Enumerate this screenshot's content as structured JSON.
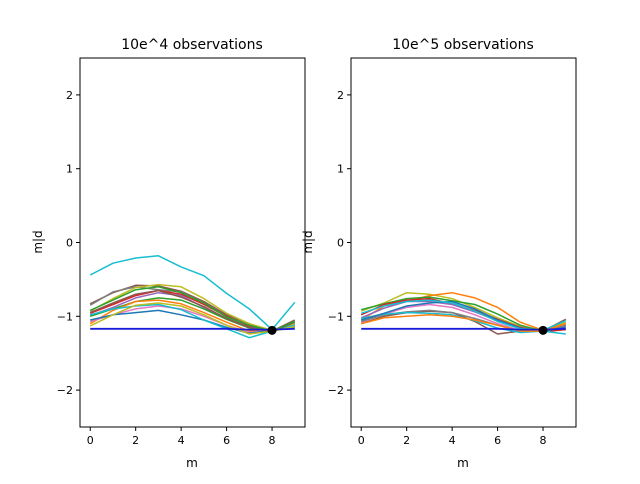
{
  "chart_data": [
    {
      "type": "line",
      "title": "10e^4 observations",
      "xlabel": "m",
      "ylabel": "m|d",
      "xlim": [
        -0.45,
        9.45
      ],
      "ylim": [
        -2.5,
        2.5
      ],
      "xticks": [
        0,
        2,
        4,
        6,
        8
      ],
      "yticks": [
        -2,
        -1,
        0,
        1,
        2
      ],
      "grid": false,
      "x": [
        0,
        1,
        2,
        3,
        4,
        5,
        6,
        7,
        8,
        9
      ],
      "true_value": {
        "x": 8,
        "y": -1.19,
        "color": "#000000"
      },
      "reference": {
        "values": [
          -1.17,
          -1.17,
          -1.17,
          -1.17,
          -1.17,
          -1.17,
          -1.17,
          -1.18,
          -1.18,
          -1.17
        ],
        "color": "#1a1adb"
      },
      "series": [
        {
          "color": "#17becf",
          "values": [
            -0.44,
            -0.28,
            -0.21,
            -0.18,
            -0.33,
            -0.45,
            -0.69,
            -0.9,
            -1.18,
            -0.81
          ]
        },
        {
          "color": "#8c564b",
          "values": [
            -0.83,
            -0.68,
            -0.58,
            -0.59,
            -0.66,
            -0.8,
            -0.98,
            -1.1,
            -1.2,
            -1.05
          ]
        },
        {
          "color": "#7f7f7f",
          "values": [
            -0.85,
            -0.67,
            -0.6,
            -0.64,
            -0.67,
            -0.82,
            -1.0,
            -1.12,
            -1.2,
            -1.09
          ]
        },
        {
          "color": "#bcbd22",
          "values": [
            -0.93,
            -0.76,
            -0.61,
            -0.57,
            -0.6,
            -0.76,
            -0.96,
            -1.1,
            -1.19,
            -1.1
          ]
        },
        {
          "color": "#d62728",
          "values": [
            -0.96,
            -0.84,
            -0.72,
            -0.65,
            -0.7,
            -0.84,
            -1.0,
            -1.13,
            -1.2,
            -1.12
          ]
        },
        {
          "color": "#9467bd",
          "values": [
            -0.99,
            -0.88,
            -0.75,
            -0.68,
            -0.72,
            -0.88,
            -1.03,
            -1.15,
            -1.19,
            -1.13
          ]
        },
        {
          "color": "#2ca02c",
          "values": [
            -1.0,
            -0.9,
            -0.8,
            -0.75,
            -0.78,
            -0.9,
            -1.04,
            -1.16,
            -1.19,
            -1.13
          ]
        },
        {
          "color": "#ff7f0e",
          "values": [
            -1.1,
            -0.92,
            -0.8,
            -0.78,
            -0.83,
            -0.95,
            -1.08,
            -1.2,
            -1.2,
            -1.14
          ]
        },
        {
          "color": "#e377c2",
          "values": [
            -1.07,
            -0.98,
            -0.9,
            -0.86,
            -0.9,
            -1.0,
            -1.12,
            -1.22,
            -1.19,
            -1.12
          ]
        },
        {
          "color": "#1f77b4",
          "values": [
            -1.05,
            -0.98,
            -0.95,
            -0.92,
            -0.98,
            -1.05,
            -1.15,
            -1.23,
            -1.19,
            -1.15
          ]
        },
        {
          "color": "#17becf",
          "values": [
            -0.98,
            -0.9,
            -0.86,
            -0.84,
            -0.91,
            -1.05,
            -1.17,
            -1.29,
            -1.2,
            -1.12
          ]
        },
        {
          "color": "#bcbd22",
          "values": [
            -1.13,
            -0.98,
            -0.85,
            -0.82,
            -0.86,
            -0.98,
            -1.12,
            -1.24,
            -1.2,
            -1.14
          ]
        },
        {
          "color": "#8c564b",
          "values": [
            -0.95,
            -0.82,
            -0.7,
            -0.65,
            -0.74,
            -0.87,
            -1.03,
            -1.15,
            -1.21,
            -1.08
          ]
        },
        {
          "color": "#2ca02c",
          "values": [
            -0.92,
            -0.78,
            -0.64,
            -0.6,
            -0.68,
            -0.82,
            -1.01,
            -1.12,
            -1.2,
            -1.07
          ]
        }
      ]
    },
    {
      "type": "line",
      "title": "10e^5 observations",
      "xlabel": "m",
      "ylabel": "m|d",
      "xlim": [
        -0.45,
        9.45
      ],
      "ylim": [
        -2.5,
        2.5
      ],
      "xticks": [
        0,
        2,
        4,
        6,
        8
      ],
      "yticks": [
        -2,
        -1,
        0,
        1,
        2
      ],
      "grid": false,
      "x": [
        0,
        1,
        2,
        3,
        4,
        5,
        6,
        7,
        8,
        9
      ],
      "true_value": {
        "x": 8,
        "y": -1.19,
        "color": "#000000"
      },
      "reference": {
        "values": [
          -1.17,
          -1.17,
          -1.17,
          -1.17,
          -1.17,
          -1.17,
          -1.17,
          -1.18,
          -1.18,
          -1.17
        ],
        "color": "#1a1adb"
      },
      "series": [
        {
          "color": "#bcbd22",
          "values": [
            -0.93,
            -0.82,
            -0.68,
            -0.7,
            -0.76,
            -0.88,
            -1.02,
            -1.14,
            -1.19,
            -1.08
          ]
        },
        {
          "color": "#ff7f0e",
          "values": [
            -1.05,
            -0.86,
            -0.8,
            -0.72,
            -0.68,
            -0.75,
            -0.88,
            -1.08,
            -1.19,
            -1.1
          ]
        },
        {
          "color": "#2ca02c",
          "values": [
            -0.91,
            -0.83,
            -0.76,
            -0.74,
            -0.79,
            -0.84,
            -0.97,
            -1.12,
            -1.2,
            -1.13
          ]
        },
        {
          "color": "#d62728",
          "values": [
            -0.98,
            -0.84,
            -0.78,
            -0.76,
            -0.83,
            -0.92,
            -1.04,
            -1.15,
            -1.21,
            -1.18
          ]
        },
        {
          "color": "#9467bd",
          "values": [
            -1.02,
            -0.89,
            -0.8,
            -0.8,
            -0.84,
            -0.94,
            -1.06,
            -1.16,
            -1.2,
            -1.13
          ]
        },
        {
          "color": "#8c564b",
          "values": [
            -1.1,
            -1.0,
            -0.95,
            -0.93,
            -0.95,
            -1.07,
            -1.24,
            -1.2,
            -1.2,
            -1.04
          ]
        },
        {
          "color": "#e377c2",
          "values": [
            -1.08,
            -0.97,
            -0.88,
            -0.84,
            -0.88,
            -0.98,
            -1.1,
            -1.19,
            -1.2,
            -1.11
          ]
        },
        {
          "color": "#7f7f7f",
          "values": [
            -1.07,
            -0.98,
            -0.94,
            -0.92,
            -0.95,
            -1.03,
            -1.12,
            -1.2,
            -1.2,
            -1.12
          ]
        },
        {
          "color": "#17becf",
          "values": [
            -1.03,
            -0.97,
            -0.95,
            -0.96,
            -0.98,
            -1.06,
            -1.16,
            -1.22,
            -1.2,
            -1.24
          ]
        },
        {
          "color": "#1f77b4",
          "values": [
            -1.05,
            -0.96,
            -0.86,
            -0.82,
            -0.8,
            -0.9,
            -1.05,
            -1.16,
            -1.2,
            -1.15
          ]
        },
        {
          "color": "#17becf",
          "values": [
            -0.96,
            -0.86,
            -0.8,
            -0.78,
            -0.82,
            -0.93,
            -1.07,
            -1.17,
            -1.19,
            -1.06
          ]
        },
        {
          "color": "#ff7f0e",
          "values": [
            -1.1,
            -1.02,
            -1.0,
            -0.98,
            -1.0,
            -1.05,
            -1.12,
            -1.2,
            -1.2,
            -1.1
          ]
        }
      ]
    }
  ]
}
